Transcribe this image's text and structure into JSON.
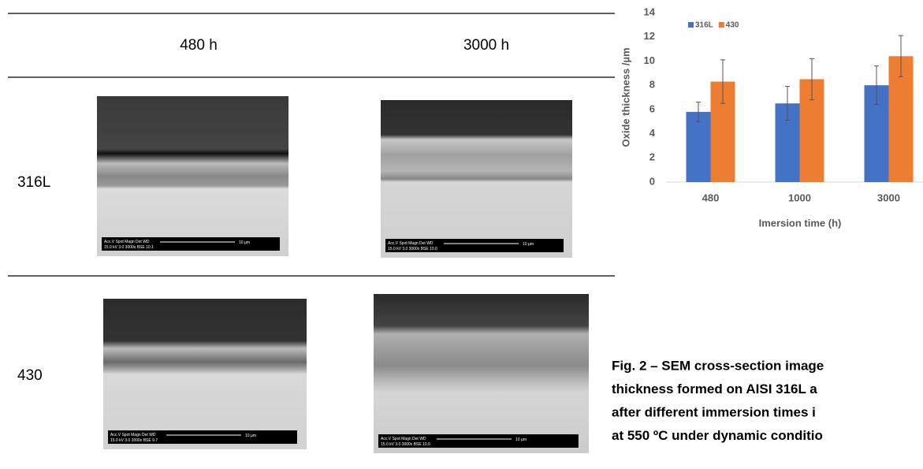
{
  "table": {
    "columns": [
      "480 h",
      "3000 h"
    ],
    "rows": [
      {
        "label": "316L",
        "images": [
          {
            "info_top": "Acc.V  Spot Magn   Det  WD",
            "info_bottom": "15.0 kV 3.0  3000x   BSE 10.1",
            "scale": "10 µm"
          },
          {
            "info_top": "Acc.V  Spot Magn   Det  WD",
            "info_bottom": "15.0 kV 3.0  3000x   BSE 10.0",
            "scale": "10 µm"
          }
        ]
      },
      {
        "label": "430",
        "images": [
          {
            "info_top": "Acc.V  Spot Magn   Det  WD",
            "info_bottom": "15.0 kV 3.0  3000x   BSE 9.7",
            "scale": "10 µm"
          },
          {
            "info_top": "Acc.V  Spot Magn   Det  WD",
            "info_bottom": "15.0 kV 3.0  3000x   BSE 10.0",
            "scale": "10 µm"
          }
        ]
      }
    ]
  },
  "caption": [
    "Fig. 2 – SEM cross-section image",
    "thickness formed on AISI 316L a",
    "after different immersion times i",
    "at 550 ºC under dynamic conditio"
  ],
  "chart_data": {
    "type": "bar",
    "y_label": "Oxide thickness /µm",
    "x_label": "Imersion time (h)",
    "categories": [
      "480",
      "1000",
      "3000"
    ],
    "series": [
      {
        "name": "316L",
        "color": "#4472c4",
        "values": [
          5.8,
          6.5,
          8.0
        ],
        "errors": [
          0.8,
          1.4,
          1.6
        ]
      },
      {
        "name": "430",
        "color": "#ed7d31",
        "values": [
          8.3,
          8.5,
          10.4
        ],
        "errors": [
          1.8,
          1.7,
          1.7
        ]
      }
    ],
    "ylim": [
      0,
      14
    ],
    "yticks": [
      0,
      2,
      4,
      6,
      8,
      10,
      12,
      14
    ],
    "legend": "top-left",
    "grid": false
  }
}
